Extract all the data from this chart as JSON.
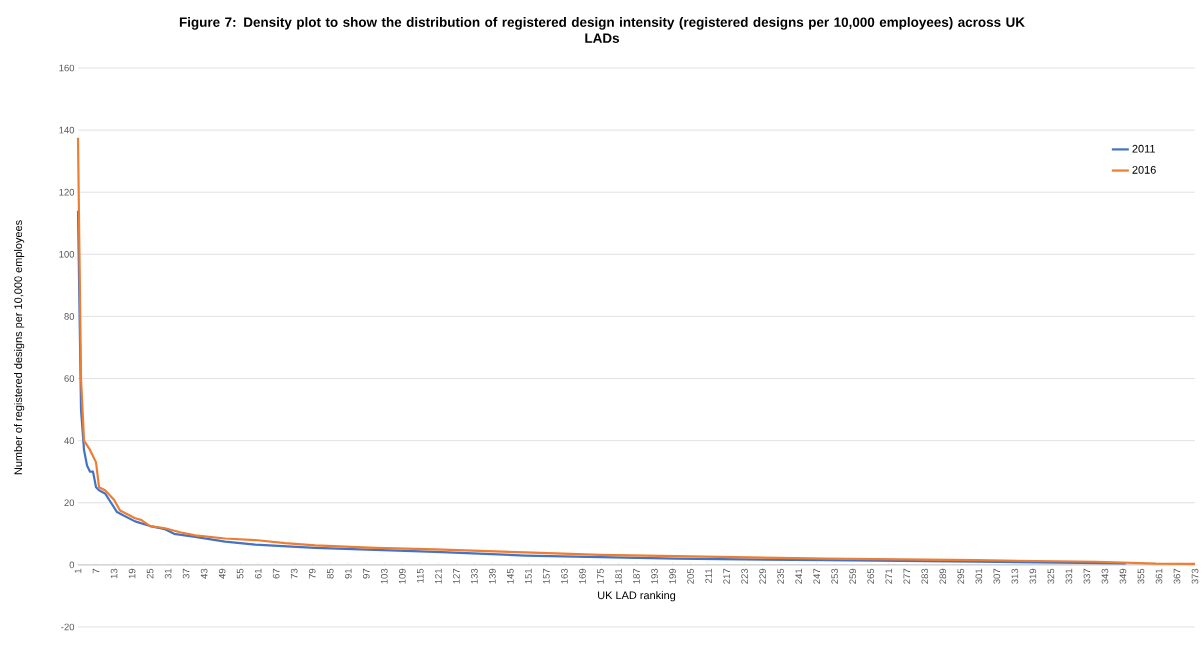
{
  "chart_data": {
    "type": "line",
    "title": "Figure 7: Density plot to show the distribution of registered design intensity (registered designs per 10,000 employees) across UK LADs",
    "xlabel": "UK LAD ranking",
    "ylabel": "Number of registered designs per 10,000 employees",
    "series": [
      {
        "name": "2011",
        "color": "#4472c4",
        "x": [
          1,
          2,
          3,
          4,
          5,
          6,
          7,
          8,
          10,
          12,
          14,
          16,
          20,
          25,
          30,
          33,
          40,
          50,
          60,
          80,
          100,
          120,
          150,
          200,
          250,
          300,
          350
        ],
        "values": [
          114,
          50,
          37,
          32,
          30,
          30,
          25,
          24,
          23,
          20,
          17,
          16,
          14,
          12.5,
          11.5,
          10,
          9,
          7.5,
          6.5,
          5.5,
          4.8,
          4.2,
          3,
          2,
          1.5,
          1,
          0.5
        ]
      },
      {
        "name": "2016",
        "color": "#ed7d31",
        "x": [
          1,
          2,
          3,
          5,
          7,
          8,
          10,
          13,
          15,
          20,
          22,
          25,
          30,
          35,
          40,
          50,
          60,
          70,
          80,
          100,
          120,
          150,
          175,
          200,
          250,
          300,
          340,
          360,
          373
        ],
        "values": [
          137.5,
          60,
          40,
          37,
          33,
          25,
          24,
          21,
          17.5,
          15,
          14.5,
          12.5,
          11.8,
          10.5,
          9.5,
          8.5,
          8,
          7,
          6.3,
          5.5,
          5,
          4,
          3.2,
          2.8,
          2,
          1.5,
          1,
          0.4,
          0.3
        ]
      }
    ],
    "xlim": [
      1,
      373
    ],
    "xticks": [
      1,
      7,
      13,
      19,
      25,
      31,
      37,
      43,
      49,
      55,
      61,
      67,
      73,
      79,
      85,
      91,
      97,
      103,
      109,
      115,
      121,
      127,
      133,
      139,
      145,
      151,
      157,
      163,
      169,
      175,
      181,
      187,
      193,
      199,
      205,
      211,
      217,
      223,
      229,
      235,
      241,
      247,
      253,
      259,
      265,
      271,
      277,
      283,
      289,
      295,
      301,
      307,
      313,
      319,
      325,
      331,
      337,
      343,
      349,
      355,
      361,
      367,
      373
    ],
    "ylim": [
      -20,
      160
    ],
    "yticks": [
      -20,
      0,
      20,
      40,
      60,
      80,
      100,
      120,
      140,
      160
    ],
    "grid": "y",
    "legend": "top right",
    "marker": "none",
    "line_style": "solid"
  }
}
